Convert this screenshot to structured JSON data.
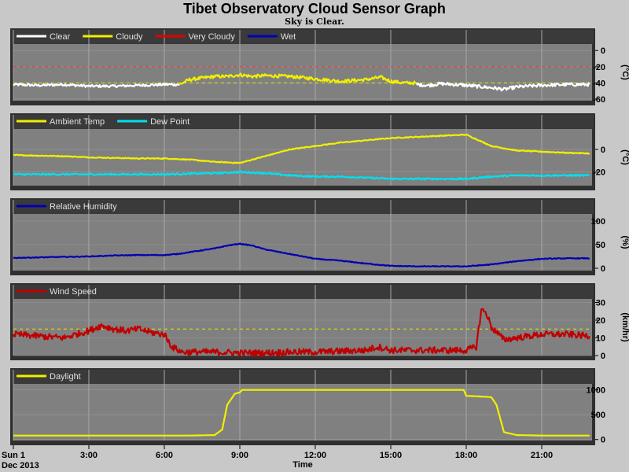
{
  "page": {
    "title": "Tibet Observatory Cloud Sensor Graph",
    "subtitle": "Sky is Clear.",
    "date_label": "Dec 2013",
    "xlabel": "Time",
    "x_ticks": [
      "Sun 1",
      "3:00",
      "6:00",
      "9:00",
      "12:00",
      "15:00",
      "18:00",
      "21:00"
    ]
  },
  "chart_data": [
    {
      "type": "line",
      "name": "sky-temp",
      "ylabel": "(°C)",
      "ylim": [
        -62,
        8
      ],
      "yticks": [
        0,
        -20,
        -40,
        -60
      ],
      "thresholds": [
        {
          "value": -20,
          "color": "#ff3030"
        },
        {
          "value": -40,
          "color": "#e8e800"
        }
      ],
      "legend": [
        {
          "label": "Clear",
          "color": "#ffffff"
        },
        {
          "label": "Cloudy",
          "color": "#f0f000"
        },
        {
          "label": "Very Cloudy",
          "color": "#e00000"
        },
        {
          "label": "Wet",
          "color": "#0000c0"
        }
      ],
      "segments": [
        {
          "color": "#ffffff",
          "jitter": 1.5,
          "x": [
            0,
            1,
            2,
            3,
            4,
            5,
            6,
            6.6
          ],
          "y": [
            -42,
            -43,
            -42,
            -44,
            -44,
            -43,
            -42,
            -42
          ]
        },
        {
          "color": "#f0f000",
          "jitter": 2,
          "x": [
            6.6,
            7,
            7.5,
            8,
            8.5,
            9,
            9.5,
            10,
            11,
            12,
            13,
            14,
            14.6,
            15,
            15.5,
            16
          ],
          "y": [
            -42,
            -36,
            -34,
            -32,
            -32,
            -30,
            -32,
            -31,
            -32,
            -35,
            -38,
            -36,
            -33,
            -38,
            -40,
            -40
          ]
        },
        {
          "color": "#ffffff",
          "jitter": 2,
          "x": [
            16,
            16.5,
            17,
            17.5,
            18,
            19,
            19.5,
            20,
            20.5,
            21,
            22,
            22.9
          ],
          "y": [
            -42,
            -43,
            -41,
            -42,
            -43,
            -46,
            -48,
            -45,
            -44,
            -43,
            -42,
            -42
          ]
        }
      ]
    },
    {
      "type": "line",
      "name": "temperature",
      "ylabel": "(°C)",
      "ylim": [
        -32,
        18
      ],
      "yticks": [
        0,
        -20
      ],
      "legend": [
        {
          "label": "Ambient Temp",
          "color": "#f0f000"
        },
        {
          "label": "Dew Point",
          "color": "#00e0f0"
        }
      ],
      "segments": [
        {
          "color": "#f0f000",
          "jitter": 0.4,
          "x": [
            0,
            1,
            2,
            3,
            4,
            5,
            6,
            7,
            8,
            9,
            10,
            11,
            12,
            13,
            14,
            15,
            16,
            17,
            18,
            18.5,
            19,
            20,
            21,
            22,
            22.9
          ],
          "y": [
            -5,
            -5.5,
            -6,
            -7,
            -7.5,
            -8,
            -8,
            -9,
            -11,
            -12,
            -6,
            0,
            3,
            6,
            8,
            10,
            11,
            12,
            13,
            8,
            3,
            -1,
            -2,
            -3,
            -3.5
          ]
        },
        {
          "color": "#00e0f0",
          "jitter": 0.7,
          "x": [
            0,
            2,
            4,
            6,
            7,
            8,
            9,
            10,
            11,
            12,
            13,
            14,
            15,
            16,
            17,
            18,
            18.5,
            19,
            20,
            21,
            22,
            22.9
          ],
          "y": [
            -22,
            -22,
            -22,
            -22,
            -21.5,
            -21,
            -20,
            -21,
            -23,
            -24,
            -24,
            -25,
            -26,
            -26,
            -26,
            -26,
            -25,
            -24,
            -23,
            -23,
            -23,
            -23
          ]
        }
      ]
    },
    {
      "type": "line",
      "name": "humidity",
      "ylabel": "(%)",
      "ylim": [
        -5,
        115
      ],
      "yticks": [
        100,
        50,
        0
      ],
      "legend": [
        {
          "label": "Relative Humidity",
          "color": "#0000b0"
        }
      ],
      "segments": [
        {
          "color": "#0000b0",
          "jitter": 0.8,
          "x": [
            0,
            1,
            2,
            3,
            4,
            5,
            6,
            6.5,
            7,
            8,
            8.5,
            9,
            9.5,
            10,
            11,
            12,
            13,
            14,
            15,
            16,
            17,
            18,
            19,
            20,
            21,
            22,
            22.9
          ],
          "y": [
            22,
            23,
            24,
            25,
            27,
            28,
            28,
            30,
            34,
            42,
            48,
            52,
            48,
            40,
            30,
            20,
            16,
            10,
            5,
            4,
            4,
            4,
            8,
            15,
            20,
            21,
            21
          ]
        }
      ]
    },
    {
      "type": "line",
      "name": "wind-speed",
      "ylabel": "(km/hr)",
      "ylim": [
        0,
        32
      ],
      "yticks": [
        30,
        20,
        10,
        0
      ],
      "thresholds": [
        {
          "value": 15,
          "color": "#e8e800"
        }
      ],
      "legend": [
        {
          "label": "Wind Speed",
          "color": "#c00000"
        }
      ],
      "segments": [
        {
          "color": "#c00000",
          "jitter": 1.8,
          "x": [
            0,
            1,
            2,
            3,
            3.5,
            4,
            4.5,
            5,
            5.5,
            6,
            6.3,
            6.7,
            7,
            8,
            9,
            10,
            11,
            12,
            13,
            14,
            14.5,
            15,
            16,
            17,
            18,
            18.4,
            18.6,
            18.8,
            19,
            19.5,
            20,
            21,
            22,
            22.9
          ],
          "y": [
            12,
            11,
            10,
            14,
            17,
            15,
            14,
            15,
            13,
            12,
            5,
            2,
            2,
            2,
            1.5,
            1.5,
            2,
            2,
            2.5,
            3,
            5,
            3,
            3,
            3,
            3,
            5,
            26,
            24,
            16,
            9,
            10,
            12,
            12,
            11
          ]
        }
      ]
    },
    {
      "type": "line",
      "name": "daylight",
      "ylabel": "",
      "ylim": [
        -20,
        1120
      ],
      "yticks": [
        1000,
        500,
        0
      ],
      "legend": [
        {
          "label": "Daylight",
          "color": "#f0f000"
        }
      ],
      "segments": [
        {
          "color": "#f0f000",
          "jitter": 0,
          "x": [
            0,
            7,
            8,
            8.3,
            8.5,
            8.8,
            9,
            9.1,
            12,
            15,
            17,
            17.9,
            18,
            18.8,
            19,
            19.2,
            19.5,
            20,
            21,
            22,
            22.9
          ],
          "y": [
            80,
            80,
            90,
            200,
            700,
            920,
            950,
            1000,
            1000,
            1000,
            1000,
            1000,
            880,
            860,
            850,
            700,
            150,
            90,
            80,
            80,
            80
          ]
        }
      ]
    }
  ]
}
